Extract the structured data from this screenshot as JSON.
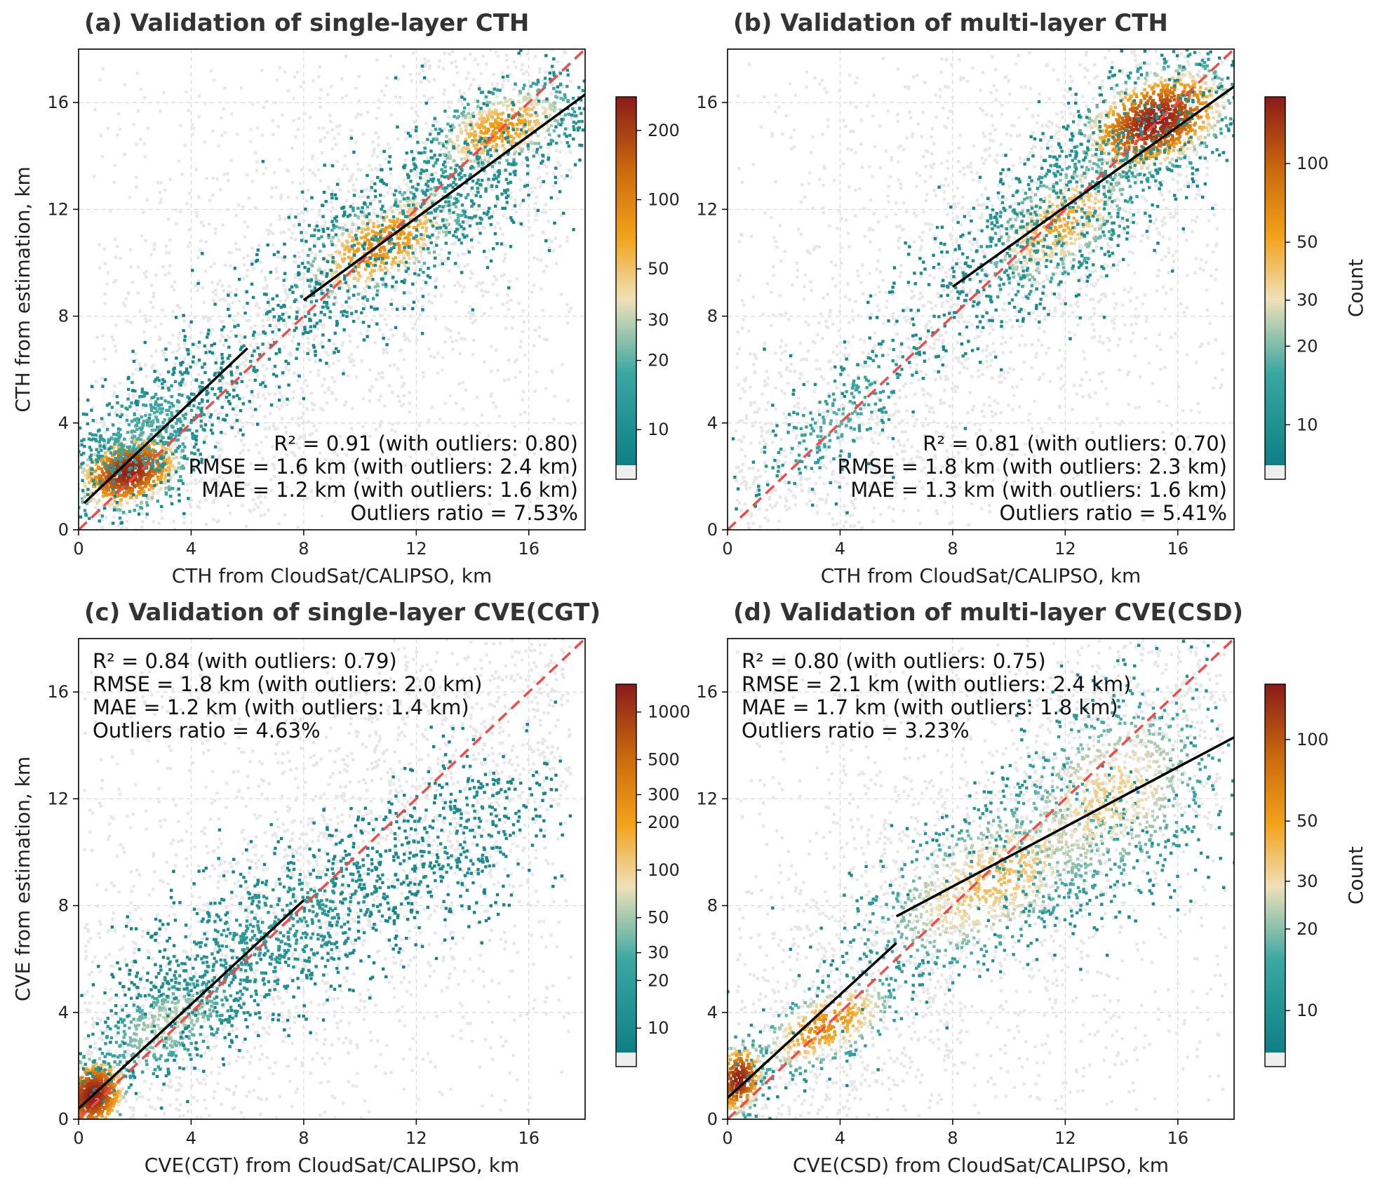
{
  "colors": {
    "background_density": "#e7e7e7",
    "low": "#1f8a8a",
    "mid": "#f4dba8",
    "orange": "#f29d0f",
    "high": "#8b1a1a",
    "one_to_one_line": "#f04a4a",
    "fit_line": "#000000",
    "under": "#eeeeee"
  },
  "colorbar_label": "Count",
  "chart_data": [
    {
      "type": "hexbin-scatter",
      "id": "a",
      "title": "(a) Validation of single-layer CTH",
      "xlabel": "CTH from CloudSat/CALIPSO, km",
      "ylabel": "CTH from estimation, km",
      "xlim": [
        0,
        18
      ],
      "ylim": [
        0,
        18
      ],
      "xticks": [
        0,
        4,
        8,
        12,
        16
      ],
      "yticks": [
        0,
        4,
        8,
        12,
        16
      ],
      "grid": true,
      "stats_position": "bottom-right",
      "stats": [
        "R² = 0.91 (with outliers: 0.80)",
        "RMSE = 1.6 km (with outliers: 2.4 km)",
        "MAE = 1.2 km (with outliers: 1.6 km)",
        "Outliers ratio = 7.53%"
      ],
      "colorbar": {
        "scale": "log",
        "min": 7,
        "max": 280,
        "ticks": [
          10,
          20,
          30,
          50,
          100,
          200
        ],
        "label": ""
      },
      "fit_lines": [
        {
          "x": [
            0.2,
            6.0
          ],
          "y": [
            1.0,
            6.8
          ]
        },
        {
          "x": [
            8.0,
            18.0
          ],
          "y": [
            8.6,
            16.3
          ]
        }
      ],
      "one_to_one": true,
      "density_clusters": [
        {
          "x": 1.8,
          "y": 2.2,
          "sx": 0.9,
          "sy": 0.7,
          "rho": 0.3,
          "n": 900,
          "peak": 260
        },
        {
          "x": 2.5,
          "y": 3.8,
          "sx": 1.6,
          "sy": 1.3,
          "rho": 0.5,
          "n": 500,
          "peak": 20
        },
        {
          "x": 10.8,
          "y": 10.7,
          "sx": 1.6,
          "sy": 1.2,
          "rho": 0.6,
          "n": 600,
          "peak": 90
        },
        {
          "x": 15.0,
          "y": 15.0,
          "sx": 1.4,
          "sy": 0.9,
          "rho": 0.5,
          "n": 600,
          "peak": 80
        },
        {
          "x": 13.0,
          "y": 12.5,
          "sx": 3.0,
          "sy": 2.2,
          "rho": 0.7,
          "n": 500,
          "peak": 12
        },
        {
          "x": 6.5,
          "y": 7.0,
          "sx": 2.2,
          "sy": 1.8,
          "rho": 0.6,
          "n": 250,
          "peak": 10
        }
      ],
      "background": {
        "x_range": [
          0.5,
          17.5
        ],
        "y_range": [
          0.5,
          17.5
        ]
      }
    },
    {
      "type": "hexbin-scatter",
      "id": "b",
      "title": "(b) Validation of multi-layer CTH",
      "xlabel": "CTH from CloudSat/CALIPSO, km",
      "ylabel": "",
      "xlim": [
        0,
        18
      ],
      "ylim": [
        0,
        18
      ],
      "xticks": [
        0,
        4,
        8,
        12,
        16
      ],
      "yticks": [
        0,
        4,
        8,
        12,
        16
      ],
      "grid": true,
      "stats_position": "bottom-right",
      "stats": [
        "R² = 0.81 (with outliers: 0.70)",
        "RMSE = 1.8 km (with outliers: 2.3 km)",
        "MAE = 1.3 km (with outliers: 1.6 km)",
        "Outliers ratio = 5.41%"
      ],
      "colorbar": {
        "scale": "log",
        "min": 7,
        "max": 180,
        "ticks": [
          10,
          20,
          30,
          50,
          100
        ],
        "label": "Count"
      },
      "fit_lines": [
        {
          "x": [
            8.0,
            18.0
          ],
          "y": [
            9.1,
            16.6
          ]
        }
      ],
      "one_to_one": true,
      "density_clusters": [
        {
          "x": 15.2,
          "y": 15.3,
          "sx": 1.3,
          "sy": 1.0,
          "rho": 0.4,
          "n": 1100,
          "peak": 170
        },
        {
          "x": 11.8,
          "y": 11.5,
          "sx": 1.6,
          "sy": 1.5,
          "rho": 0.6,
          "n": 600,
          "peak": 50
        },
        {
          "x": 12.0,
          "y": 12.0,
          "sx": 3.3,
          "sy": 3.0,
          "rho": 0.8,
          "n": 600,
          "peak": 12
        },
        {
          "x": 4.0,
          "y": 4.2,
          "sx": 1.6,
          "sy": 1.6,
          "rho": 0.7,
          "n": 250,
          "peak": 18
        }
      ],
      "background": {
        "x_range": [
          0.3,
          17.7
        ],
        "y_range": [
          0.3,
          17.7
        ]
      }
    },
    {
      "type": "hexbin-scatter",
      "id": "c",
      "title": "(c) Validation of single-layer CVE(CGT)",
      "xlabel": "CVE(CGT) from CloudSat/CALIPSO, km",
      "ylabel": "CVE from estimation, km",
      "xlim": [
        0,
        18
      ],
      "ylim": [
        0,
        18
      ],
      "xticks": [
        0,
        4,
        8,
        12,
        16
      ],
      "yticks": [
        0,
        4,
        8,
        12,
        16
      ],
      "grid": true,
      "stats_position": "top-left",
      "stats": [
        "R² = 0.84 (with outliers: 0.79)",
        "RMSE = 1.8 km (with outliers: 2.0 km)",
        "MAE = 1.2 km (with outliers: 1.4 km)",
        "Outliers ratio = 4.63%"
      ],
      "colorbar": {
        "scale": "log",
        "min": 7,
        "max": 1500,
        "ticks": [
          10,
          20,
          30,
          50,
          100,
          200,
          300,
          500,
          1000
        ],
        "label": ""
      },
      "fit_lines": [
        {
          "x": [
            0.0,
            8.0
          ],
          "y": [
            0.4,
            8.2
          ]
        }
      ],
      "one_to_one": true,
      "density_clusters": [
        {
          "x": 0.5,
          "y": 0.9,
          "sx": 0.5,
          "sy": 0.6,
          "rho": 0.2,
          "n": 700,
          "peak": 1400
        },
        {
          "x": 3.2,
          "y": 3.6,
          "sx": 1.5,
          "sy": 1.2,
          "rho": 0.6,
          "n": 500,
          "peak": 60
        },
        {
          "x": 7.0,
          "y": 7.0,
          "sx": 2.8,
          "sy": 2.0,
          "rho": 0.6,
          "n": 900,
          "peak": 18
        },
        {
          "x": 13.5,
          "y": 10.5,
          "sx": 2.0,
          "sy": 1.8,
          "rho": 0.4,
          "n": 400,
          "peak": 12
        }
      ],
      "background": {
        "x_range": [
          0.2,
          17.5
        ],
        "y_range": [
          0.2,
          17.0
        ]
      }
    },
    {
      "type": "hexbin-scatter",
      "id": "d",
      "title": "(d) Validation of multi-layer CVE(CSD)",
      "xlabel": "CVE(CSD) from CloudSat/CALIPSO, km",
      "ylabel": "",
      "xlim": [
        0,
        18
      ],
      "ylim": [
        0,
        18
      ],
      "xticks": [
        0,
        4,
        8,
        12,
        16
      ],
      "yticks": [
        0,
        4,
        8,
        12,
        16
      ],
      "grid": true,
      "stats_position": "top-left",
      "stats": [
        "R² = 0.80 (with outliers: 0.75)",
        "RMSE = 2.1 km (with outliers: 2.4 km)",
        "MAE = 1.7 km (with outliers: 1.8 km)",
        "Outliers ratio = 3.23%"
      ],
      "colorbar": {
        "scale": "log",
        "min": 7,
        "max": 160,
        "ticks": [
          10,
          20,
          30,
          50,
          100
        ],
        "label": "Count"
      },
      "fit_lines": [
        {
          "x": [
            0.0,
            6.0
          ],
          "y": [
            0.8,
            6.6
          ]
        },
        {
          "x": [
            6.0,
            18.0
          ],
          "y": [
            7.6,
            14.3
          ]
        }
      ],
      "one_to_one": true,
      "density_clusters": [
        {
          "x": 0.4,
          "y": 1.5,
          "sx": 0.45,
          "sy": 0.7,
          "rho": 0.2,
          "n": 350,
          "peak": 150
        },
        {
          "x": 3.5,
          "y": 3.5,
          "sx": 1.4,
          "sy": 1.0,
          "rho": 0.6,
          "n": 400,
          "peak": 60
        },
        {
          "x": 9.5,
          "y": 9.0,
          "sx": 2.6,
          "sy": 2.0,
          "rho": 0.6,
          "n": 900,
          "peak": 40
        },
        {
          "x": 13.5,
          "y": 12.0,
          "sx": 2.3,
          "sy": 2.3,
          "rho": 0.4,
          "n": 800,
          "peak": 35
        }
      ],
      "background": {
        "x_range": [
          0.3,
          17.7
        ],
        "y_range": [
          0.3,
          17.5
        ]
      }
    }
  ]
}
